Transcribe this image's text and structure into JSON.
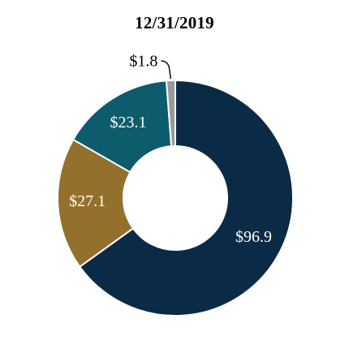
{
  "chart_data": {
    "type": "pie",
    "title": "12/31/2019",
    "categories": [
      "$96.9",
      "$27.1",
      "$23.1",
      "$1.8"
    ],
    "values": [
      96.9,
      27.1,
      23.1,
      1.8
    ],
    "data_labels": [
      "$96.9",
      "$27.1",
      "$23.1",
      "$1.8"
    ],
    "colors": [
      "#0b2a45",
      "#93702c",
      "#0d5c6e",
      "#9a9a9a"
    ],
    "label_colors": [
      "#ffffff",
      "#ffffff",
      "#ffffff",
      "#000000"
    ],
    "donut": true,
    "start_position": "top",
    "direction": "clockwise",
    "grid": false,
    "legend": "none"
  }
}
